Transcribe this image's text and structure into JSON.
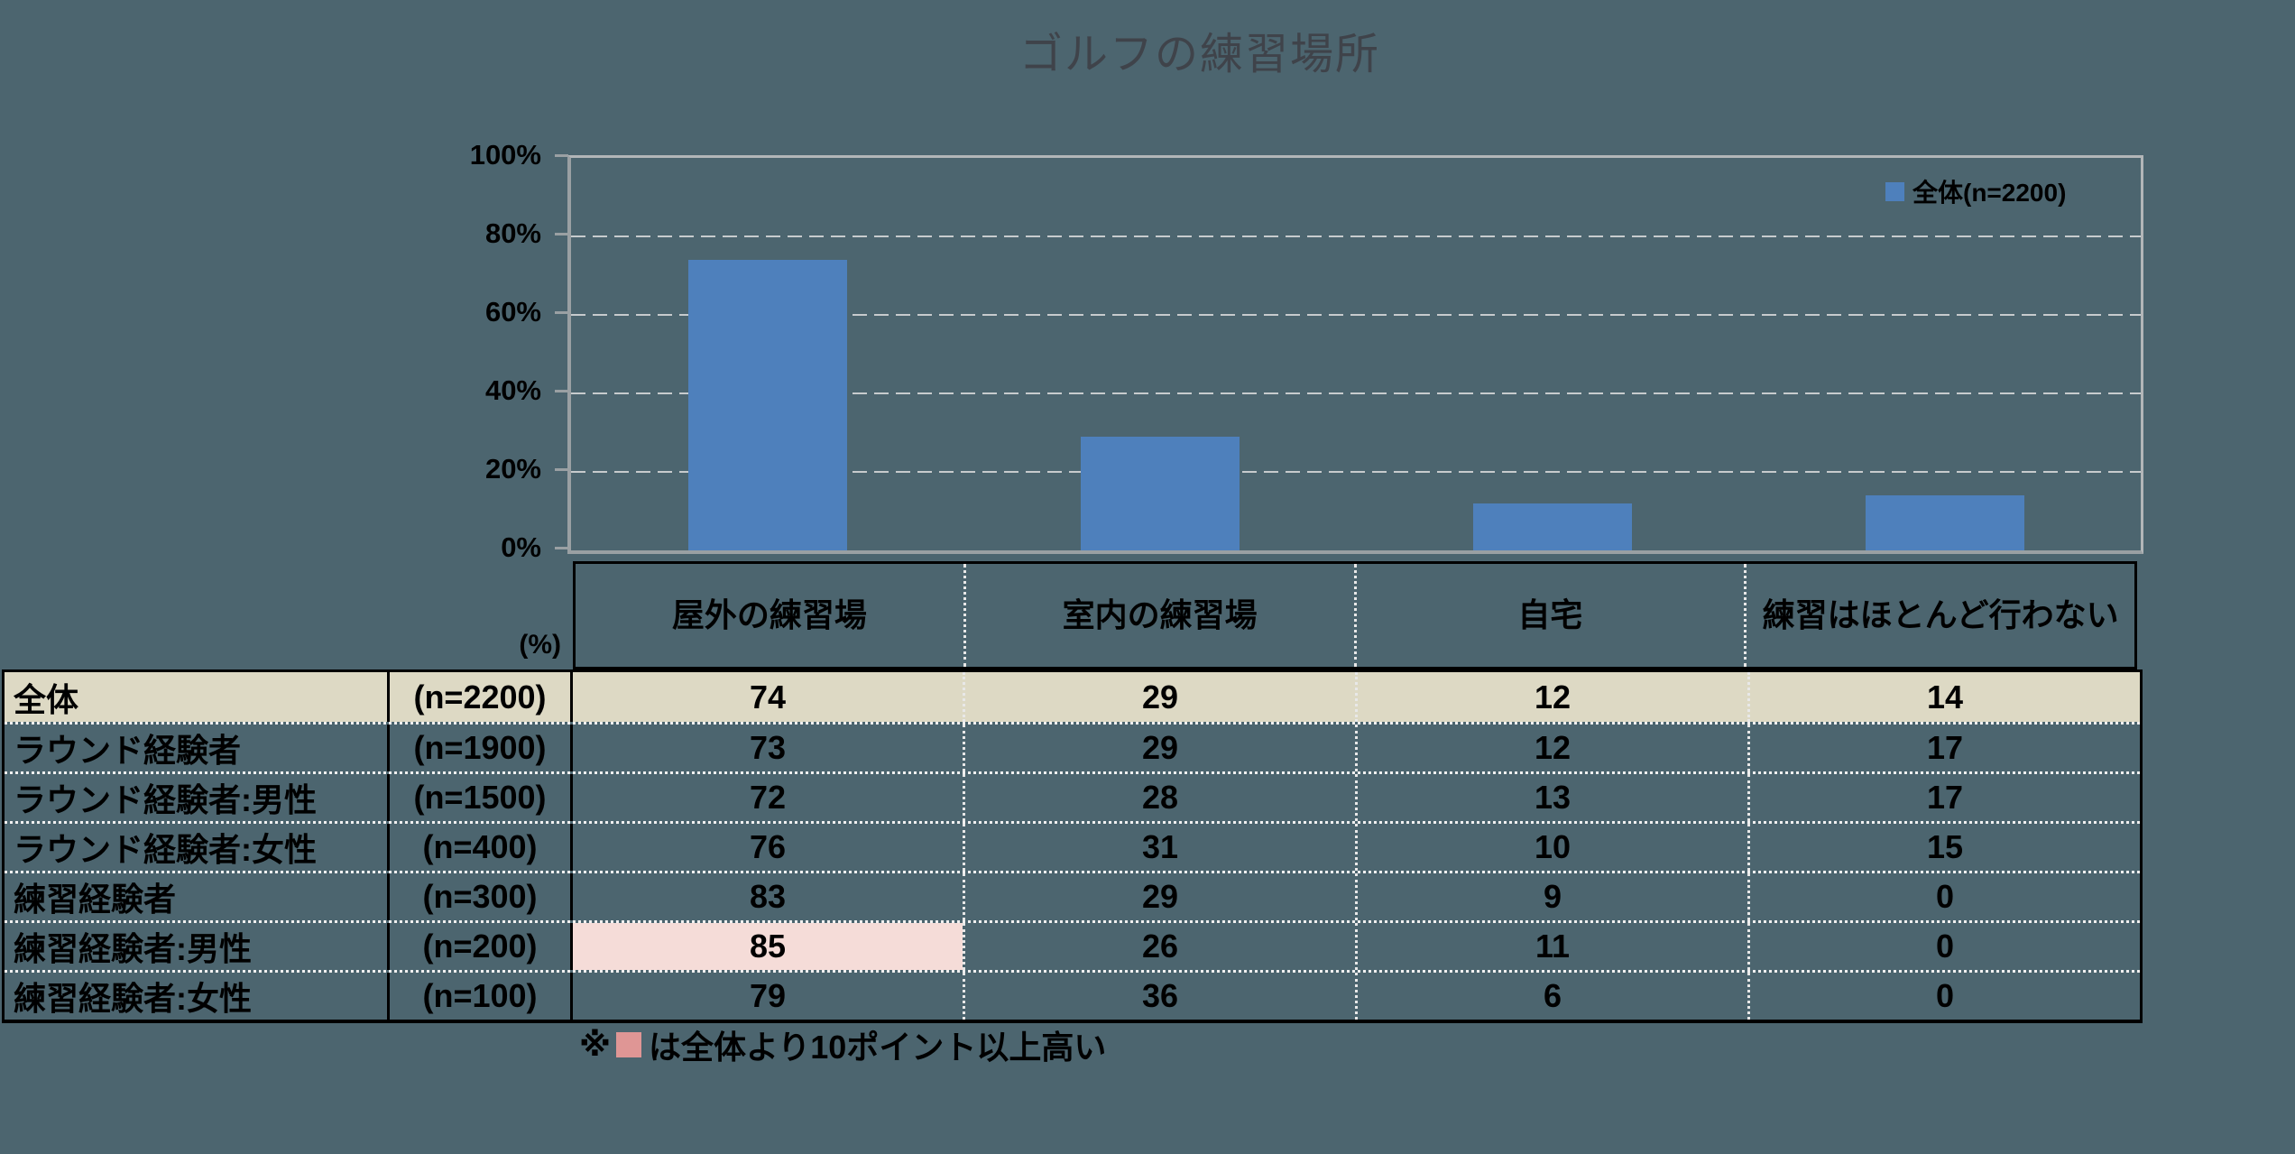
{
  "title": "ゴルフの練習場所",
  "chart_data": {
    "type": "bar",
    "title": "ゴルフの練習場所",
    "categories": [
      "屋外の練習場",
      "室内の練習場",
      "自宅",
      "練習はほとんど行わない"
    ],
    "series": [
      {
        "name": "全体(n=2200)",
        "values": [
          74,
          29,
          12,
          14
        ]
      }
    ],
    "ylabel": "(%)",
    "ylim": [
      0,
      100
    ],
    "yticks": [
      "0%",
      "20%",
      "40%",
      "60%",
      "80%",
      "100%"
    ],
    "grid": true,
    "legend_position": "top-right",
    "bar_color": "#4e80bc"
  },
  "legend": {
    "label": "全体(n=2200)"
  },
  "table": {
    "unit_label": "(%)",
    "columns": [
      "屋外の練習場",
      "室内の練習場",
      "自宅",
      "練習はほとんど行わない"
    ],
    "rows": [
      {
        "label": "全体",
        "n": "(n=2200)",
        "values": [
          74,
          29,
          12,
          14
        ],
        "highlight_row": true,
        "highlight_cells": []
      },
      {
        "label": "ラウンド経験者",
        "n": "(n=1900)",
        "values": [
          73,
          29,
          12,
          17
        ],
        "highlight_row": false,
        "highlight_cells": []
      },
      {
        "label": "ラウンド経験者:男性",
        "n": "(n=1500)",
        "values": [
          72,
          28,
          13,
          17
        ],
        "highlight_row": false,
        "highlight_cells": []
      },
      {
        "label": "ラウンド経験者:女性",
        "n": "(n=400)",
        "values": [
          76,
          31,
          10,
          15
        ],
        "highlight_row": false,
        "highlight_cells": []
      },
      {
        "label": "練習経験者",
        "n": "(n=300)",
        "values": [
          83,
          29,
          9,
          0
        ],
        "highlight_row": false,
        "highlight_cells": []
      },
      {
        "label": "練習経験者:男性",
        "n": "(n=200)",
        "values": [
          85,
          26,
          11,
          0
        ],
        "highlight_row": false,
        "highlight_cells": [
          0
        ]
      },
      {
        "label": "練習経験者:女性",
        "n": "(n=100)",
        "values": [
          79,
          36,
          6,
          0
        ],
        "highlight_row": false,
        "highlight_cells": []
      }
    ]
  },
  "footnote": {
    "prefix": "※",
    "text": "は全体より10ポイント以上高い"
  },
  "colors": {
    "background": "#4c656f",
    "bar": "#4e80bc",
    "row_highlight": "#ddd9c4",
    "cell_highlight": "#f5dcd8",
    "footnote_square": "#df9695",
    "gridline": "#c7cbcd",
    "axis": "#9aa0a3"
  }
}
